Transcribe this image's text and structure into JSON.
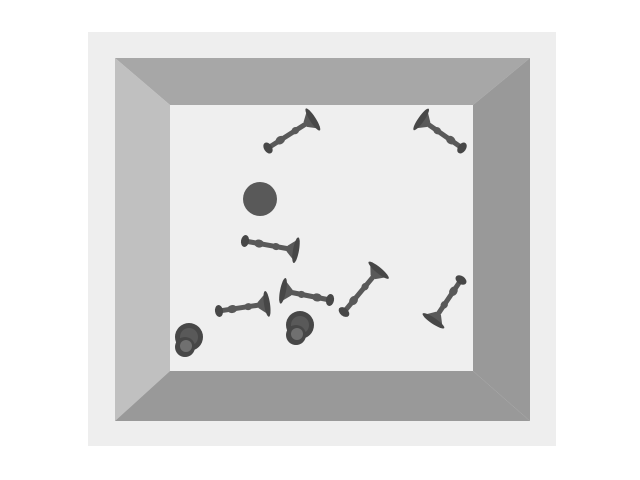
{
  "scene": {
    "view": "top-down",
    "colors": {
      "page": "#ffffff",
      "frame": "#eeeeee",
      "floor": "#efefef",
      "wall_top": "#a7a7a7",
      "wall_left": "#c0c0c0",
      "wall_right": "#999999",
      "wall_bottom": "#999999",
      "object": "#595959",
      "object_dark": "#474747",
      "object_light": "#707070"
    },
    "objects": [
      {
        "kind": "dumbbell",
        "name": "dumbbell-1"
      },
      {
        "kind": "dumbbell",
        "name": "dumbbell-2"
      },
      {
        "kind": "dumbbell",
        "name": "dumbbell-3"
      },
      {
        "kind": "dumbbell",
        "name": "dumbbell-4"
      },
      {
        "kind": "dumbbell",
        "name": "dumbbell-5"
      },
      {
        "kind": "dumbbell",
        "name": "dumbbell-6"
      },
      {
        "kind": "dumbbell",
        "name": "dumbbell-7"
      },
      {
        "kind": "dumbbell",
        "name": "dumbbell-8"
      },
      {
        "kind": "ball",
        "name": "ball-1"
      },
      {
        "kind": "upright-dumbbell",
        "name": "upright-dumbbell-1"
      },
      {
        "kind": "upright-dumbbell",
        "name": "upright-dumbbell-2"
      }
    ]
  }
}
